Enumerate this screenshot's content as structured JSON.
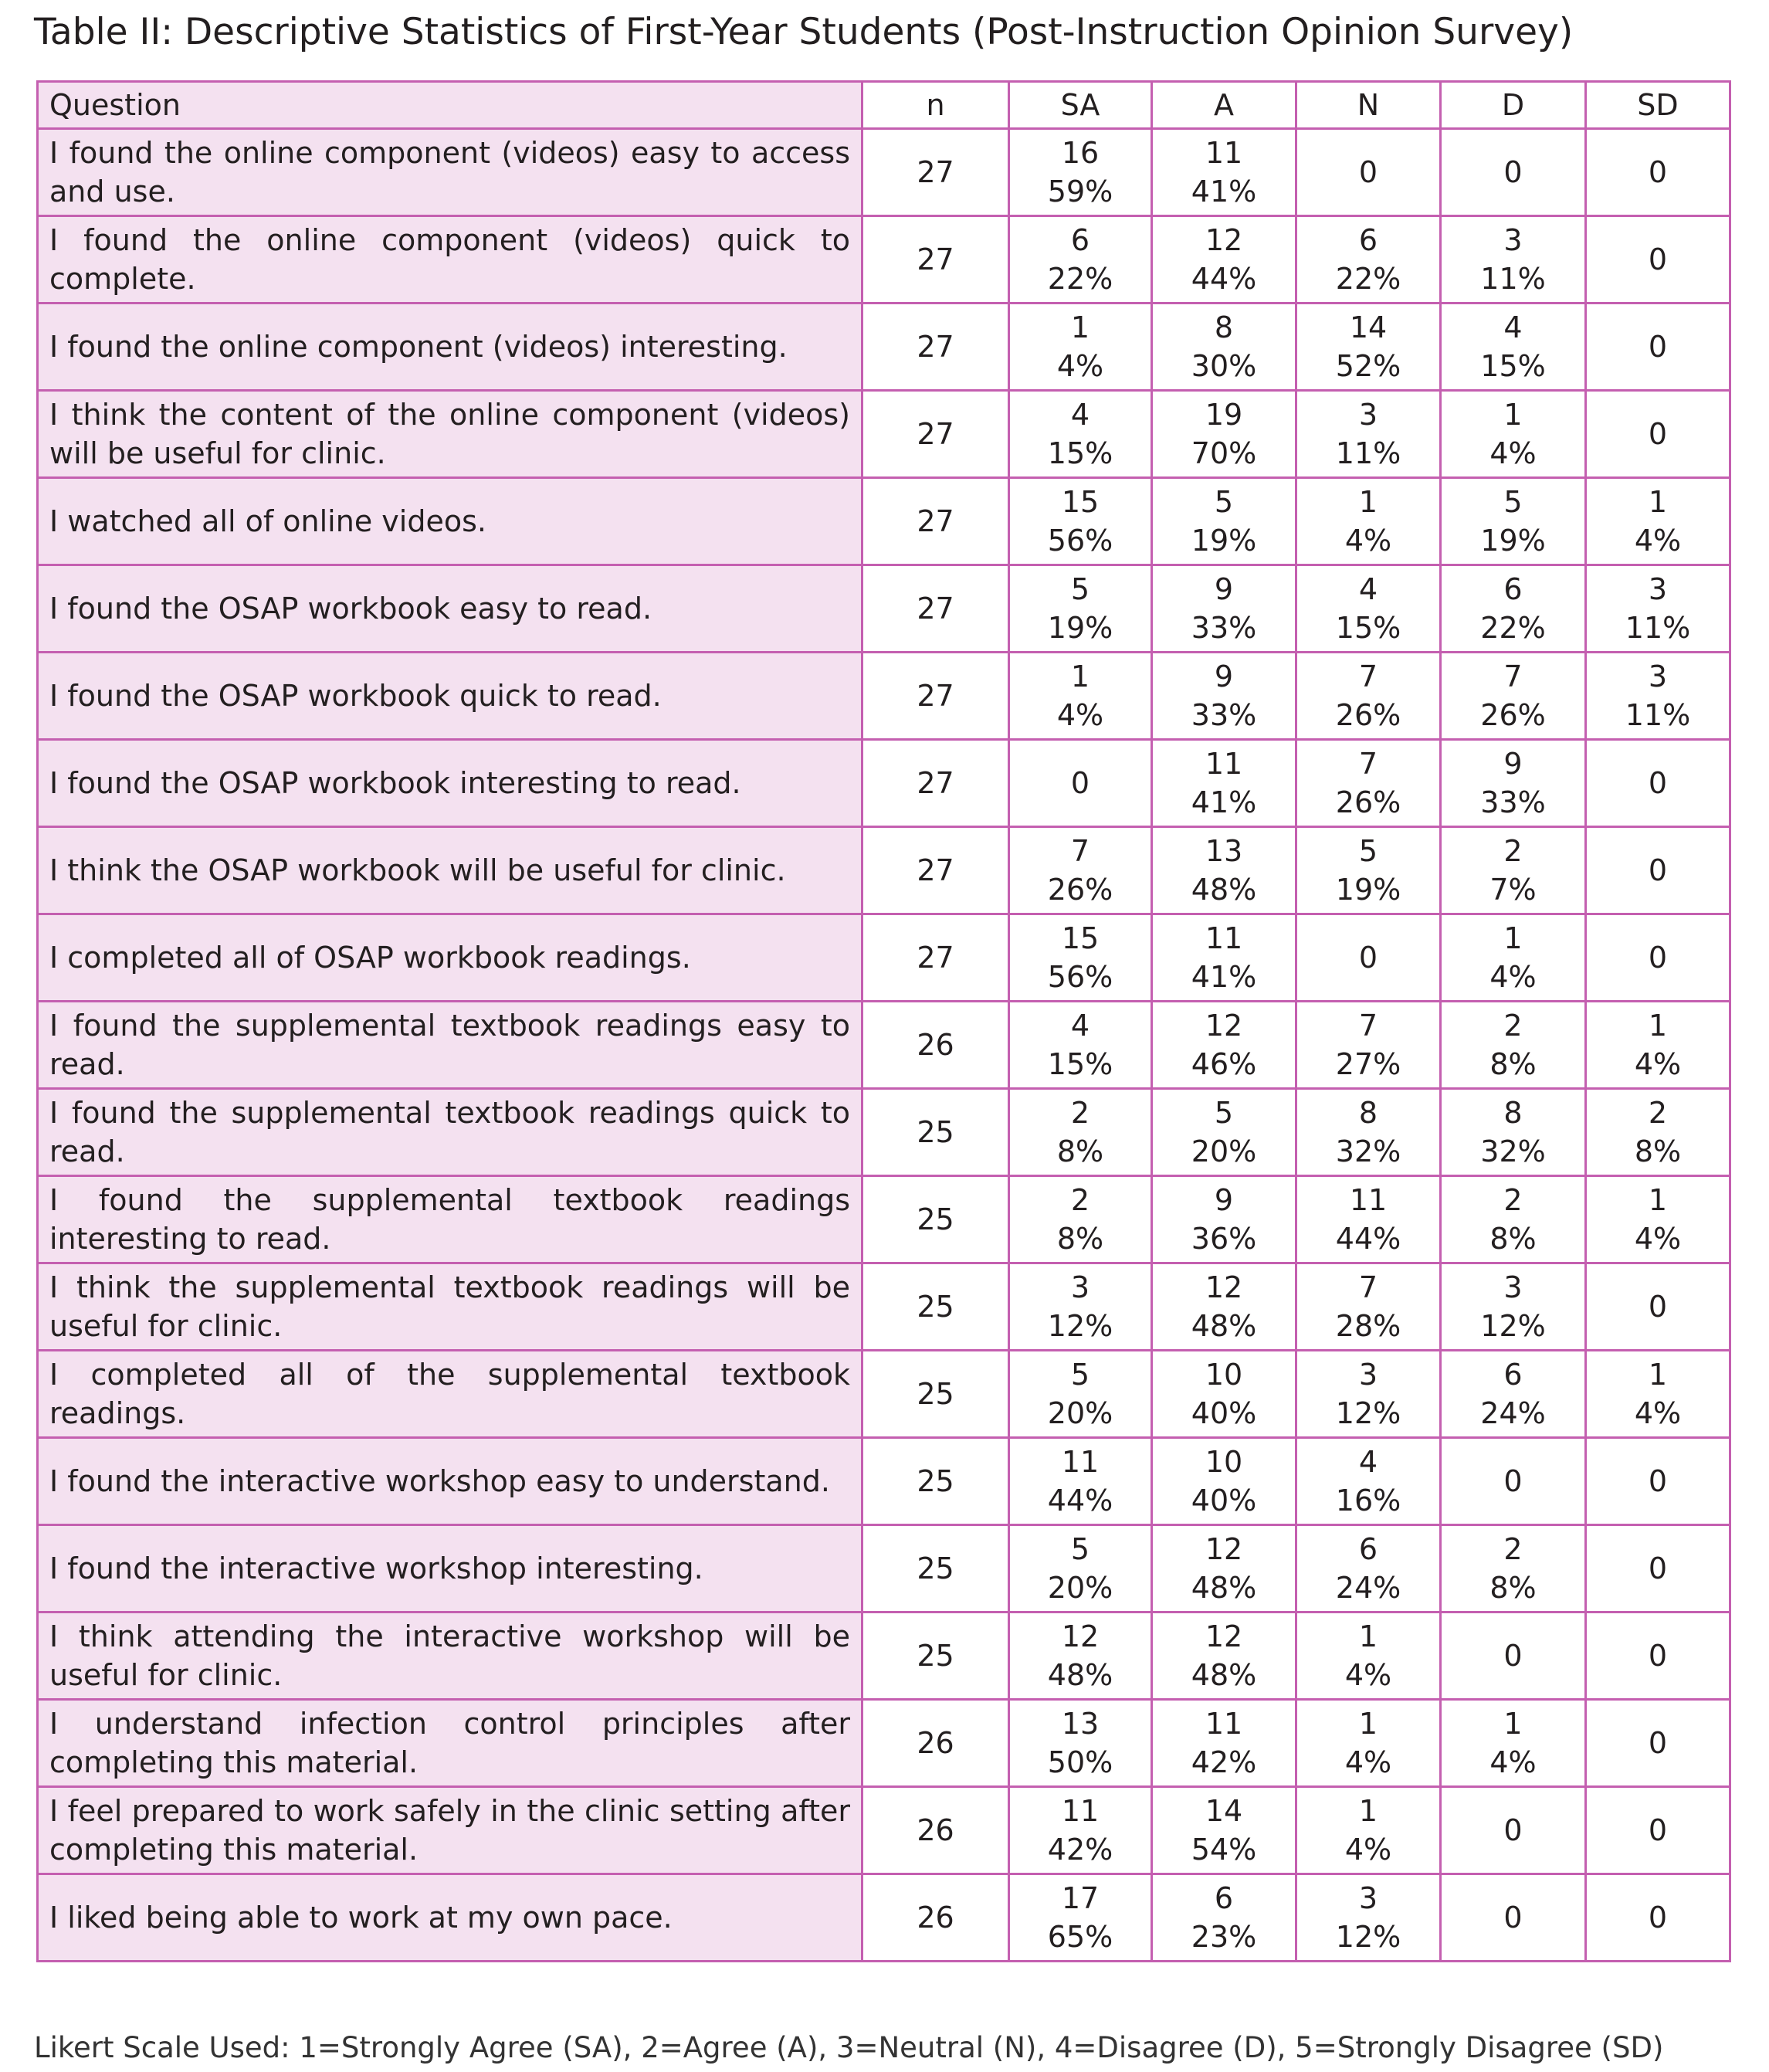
{
  "title": "Table II: Descriptive Statistics of First-Year Students (Post-Instruction Opinion Survey)",
  "table": {
    "headers": [
      "Question",
      "n",
      "SA",
      "A",
      "N",
      "D",
      "SD"
    ],
    "rows": [
      {
        "question": "I found the online component (videos) easy to access and use.",
        "n": 27,
        "cells": [
          [
            16,
            "59%"
          ],
          [
            11,
            "41%"
          ],
          [
            0
          ],
          [
            0
          ],
          [
            0
          ]
        ]
      },
      {
        "question": "I found the online component (videos) quick to complete.",
        "n": 27,
        "cells": [
          [
            6,
            "22%"
          ],
          [
            12,
            "44%"
          ],
          [
            6,
            "22%"
          ],
          [
            3,
            "11%"
          ],
          [
            0
          ]
        ]
      },
      {
        "question": "I found the online component (videos) interesting.",
        "n": 27,
        "cells": [
          [
            1,
            "4%"
          ],
          [
            8,
            "30%"
          ],
          [
            14,
            "52%"
          ],
          [
            4,
            "15%"
          ],
          [
            0
          ]
        ]
      },
      {
        "question": "I think the content of the online component (videos) will be useful for clinic.",
        "n": 27,
        "cells": [
          [
            4,
            "15%"
          ],
          [
            19,
            "70%"
          ],
          [
            3,
            "11%"
          ],
          [
            1,
            "4%"
          ],
          [
            0
          ]
        ]
      },
      {
        "question": "I watched all of online videos.",
        "n": 27,
        "cells": [
          [
            15,
            "56%"
          ],
          [
            5,
            "19%"
          ],
          [
            1,
            "4%"
          ],
          [
            5,
            "19%"
          ],
          [
            1,
            "4%"
          ]
        ]
      },
      {
        "question": "I found the OSAP workbook easy to read.",
        "n": 27,
        "cells": [
          [
            5,
            "19%"
          ],
          [
            9,
            "33%"
          ],
          [
            4,
            "15%"
          ],
          [
            6,
            "22%"
          ],
          [
            3,
            "11%"
          ]
        ]
      },
      {
        "question": "I found the OSAP workbook quick to read.",
        "n": 27,
        "cells": [
          [
            1,
            "4%"
          ],
          [
            9,
            "33%"
          ],
          [
            7,
            "26%"
          ],
          [
            7,
            "26%"
          ],
          [
            3,
            "11%"
          ]
        ]
      },
      {
        "question": "I found the OSAP workbook interesting to read.",
        "n": 27,
        "cells": [
          [
            0
          ],
          [
            11,
            "41%"
          ],
          [
            7,
            "26%"
          ],
          [
            9,
            "33%"
          ],
          [
            0
          ]
        ]
      },
      {
        "question": "I think the OSAP workbook will be useful for clinic.",
        "n": 27,
        "cells": [
          [
            7,
            "26%"
          ],
          [
            13,
            "48%"
          ],
          [
            5,
            "19%"
          ],
          [
            2,
            "7%"
          ],
          [
            0
          ]
        ]
      },
      {
        "question": "I completed all of OSAP workbook readings.",
        "n": 27,
        "cells": [
          [
            15,
            "56%"
          ],
          [
            11,
            "41%"
          ],
          [
            0
          ],
          [
            1,
            "4%"
          ],
          [
            0
          ]
        ]
      },
      {
        "question": "I found the supplemental textbook readings easy to read.",
        "n": 26,
        "cells": [
          [
            4,
            "15%"
          ],
          [
            12,
            "46%"
          ],
          [
            7,
            "27%"
          ],
          [
            2,
            "8%"
          ],
          [
            1,
            "4%"
          ]
        ]
      },
      {
        "question": "I found the supplemental textbook readings quick to read.",
        "n": 25,
        "cells": [
          [
            2,
            "8%"
          ],
          [
            5,
            "20%"
          ],
          [
            8,
            "32%"
          ],
          [
            8,
            "32%"
          ],
          [
            2,
            "8%"
          ]
        ]
      },
      {
        "question": "I found the supplemental textbook readings interesting to read.",
        "n": 25,
        "cells": [
          [
            2,
            "8%"
          ],
          [
            9,
            "36%"
          ],
          [
            11,
            "44%"
          ],
          [
            2,
            "8%"
          ],
          [
            1,
            "4%"
          ]
        ]
      },
      {
        "question": "I think the supplemental textbook readings will be useful for clinic.",
        "n": 25,
        "cells": [
          [
            3,
            "12%"
          ],
          [
            12,
            "48%"
          ],
          [
            7,
            "28%"
          ],
          [
            3,
            "12%"
          ],
          [
            0
          ]
        ]
      },
      {
        "question": "I completed all of the supplemental textbook readings.",
        "n": 25,
        "cells": [
          [
            5,
            "20%"
          ],
          [
            10,
            "40%"
          ],
          [
            3,
            "12%"
          ],
          [
            6,
            "24%"
          ],
          [
            1,
            "4%"
          ]
        ]
      },
      {
        "question": "I found the interactive workshop easy to understand.",
        "n": 25,
        "cells": [
          [
            11,
            "44%"
          ],
          [
            10,
            "40%"
          ],
          [
            4,
            "16%"
          ],
          [
            0
          ],
          [
            0
          ]
        ]
      },
      {
        "question": "I found the interactive workshop interesting.",
        "n": 25,
        "cells": [
          [
            5,
            "20%"
          ],
          [
            12,
            "48%"
          ],
          [
            6,
            "24%"
          ],
          [
            2,
            "8%"
          ],
          [
            0
          ]
        ]
      },
      {
        "question": "I think attending the interactive workshop will be useful for clinic.",
        "n": 25,
        "cells": [
          [
            12,
            "48%"
          ],
          [
            12,
            "48%"
          ],
          [
            1,
            "4%"
          ],
          [
            0
          ],
          [
            0
          ]
        ]
      },
      {
        "question": "I understand infection control principles after completing this material.",
        "n": 26,
        "cells": [
          [
            13,
            "50%"
          ],
          [
            11,
            "42%"
          ],
          [
            1,
            "4%"
          ],
          [
            1,
            "4%"
          ],
          [
            0
          ]
        ]
      },
      {
        "question": "I feel prepared to work safely in the clinic setting after completing this material.",
        "n": 26,
        "cells": [
          [
            11,
            "42%"
          ],
          [
            14,
            "54%"
          ],
          [
            1,
            "4%"
          ],
          [
            0
          ],
          [
            0
          ]
        ]
      },
      {
        "question": "I liked being able to work at my own pace.",
        "n": 26,
        "cells": [
          [
            17,
            "65%"
          ],
          [
            6,
            "23%"
          ],
          [
            3,
            "12%"
          ],
          [
            0
          ],
          [
            0
          ]
        ]
      }
    ]
  },
  "footnote": "Likert Scale Used: 1=Strongly Agree (SA), 2=Agree (A), 3=Neutral (N), 4=Disagree (D), 5=Strongly Disagree (SD)"
}
